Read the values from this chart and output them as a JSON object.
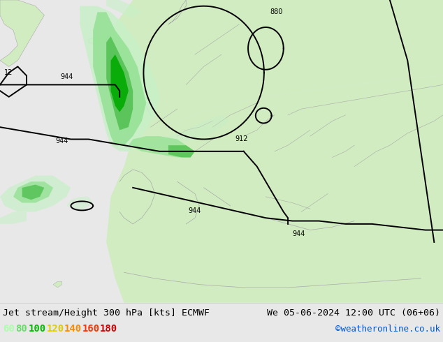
{
  "title_left": "Jet stream/Height 300 hPa [kts] ECMWF",
  "title_right": "We 05-06-2024 12:00 UTC (06+06)",
  "credit": "©weatheronline.co.uk",
  "legend_values": [
    60,
    80,
    100,
    120,
    140,
    160,
    180
  ],
  "legend_colors": [
    "#aaffaa",
    "#66dd66",
    "#00bb00",
    "#ddcc00",
    "#ff8800",
    "#ff3300",
    "#cc0000"
  ],
  "bg_color": "#e8e8e8",
  "ocean_color": "#e8e8e8",
  "land_color": "#d0ecc0",
  "land_dark_color": "#c0e4a0",
  "coast_color": "#aaaaaa",
  "jet_color_1": "#c8f0c8",
  "jet_color_2": "#90e090",
  "jet_color_3": "#50c050",
  "jet_color_4": "#00aa00",
  "contour_color": "#000000",
  "figsize": [
    6.34,
    4.9
  ],
  "dpi": 100,
  "font_size_title": 9.5,
  "font_size_legend": 10,
  "font_size_credit": 9,
  "font_size_label": 7
}
